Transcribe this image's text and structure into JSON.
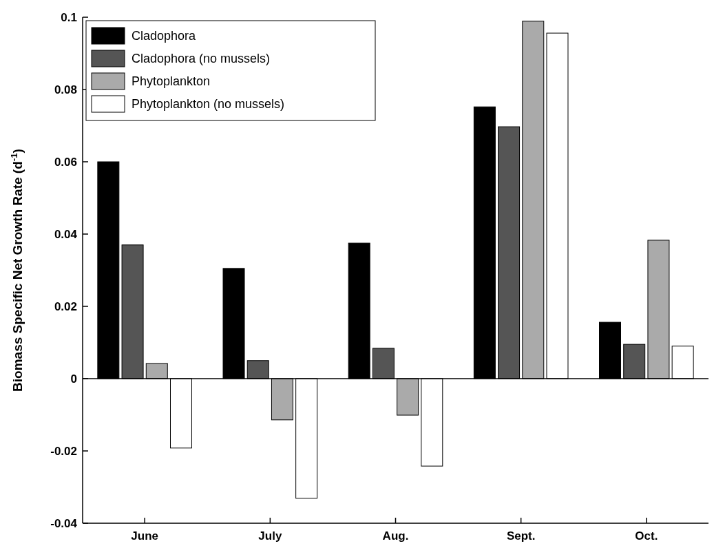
{
  "chart_data": {
    "type": "bar",
    "ylabel": "Biomass Specific Net Growth Rate (d$^{-1}$)",
    "categories": [
      "June",
      "July",
      "Aug.",
      "Sept.",
      "Oct."
    ],
    "series": [
      {
        "name": "Cladophora",
        "color": "#000000",
        "values": [
          0.06,
          0.0305,
          0.0375,
          0.0752,
          0.0156
        ]
      },
      {
        "name": "Cladophora (no mussels)",
        "color": "#555555",
        "values": [
          0.037,
          0.005,
          0.0084,
          0.0697,
          0.0095
        ]
      },
      {
        "name": "Phytoplankton",
        "color": "#aaaaaa",
        "values": [
          0.0042,
          -0.0114,
          -0.0101,
          0.0989,
          0.0383
        ]
      },
      {
        "name": "Phytoplankton (no mussels)",
        "color": "#ffffff",
        "values": [
          -0.0192,
          -0.0331,
          -0.0242,
          0.0956,
          0.009
        ]
      }
    ],
    "ylim": [
      -0.04,
      0.1
    ],
    "yticks": [
      -0.04,
      -0.02,
      0,
      0.02,
      0.04,
      0.06,
      0.08,
      0.1
    ],
    "ref_lines": [
      {
        "axis": "y",
        "value": 0,
        "color": "#000000"
      }
    ],
    "legend": "top left",
    "grid": false
  }
}
